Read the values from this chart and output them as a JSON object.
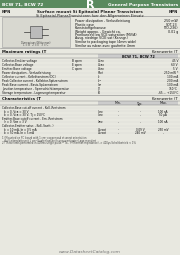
{
  "header_bg": "#5a8a5e",
  "header_text_left": "BCW 71, BCW 72",
  "header_text_center": "R",
  "header_text_right": "General Purpose Transistors",
  "header_text_color": "#ffffff",
  "subheader_left": "NPN",
  "subheader_right": "NPN",
  "body_bg": "#e8e8e0",
  "title1": "Surface mount Si Epitaxial Planar Transistors",
  "title2": "Si Epitaxial-Planar-Transistoren fuer den Allgemeinen Einsatz",
  "feat_lines": [
    [
      "Power dissipation - Verlustleistung",
      "250 mW"
    ],
    [
      "Plastic case",
      "SOT-23"
    ],
    [
      "Kunststoffgehaeuse",
      "(TO-236)"
    ],
    [
      "Weight approx. - Gewicht ca.",
      "0.01 g"
    ],
    [
      "Pronounced low VCE saturation (MV/A)",
      ""
    ],
    [
      "Ausg. niedrige VCEI sat (Kenngr.)",
      ""
    ],
    [
      "Similar to packaging tape (4mm wide)",
      ""
    ],
    [
      "Similar au ruban avec gaufrette 4mm",
      ""
    ]
  ],
  "max_ratings_title": "Maximum ratings (T",
  "max_ratings_title2": "A = 25°C)",
  "max_ratings_right": "Kennwerte (T",
  "max_ratings_right2": "A = 25°C)",
  "col_header": "BCW 71, BCW 72",
  "max_ratings": [
    [
      "Collector-Emitter voltage",
      "B open",
      "Vᴄᴇᴏ",
      "45 V"
    ],
    [
      "Collector-Base voltage",
      "E open",
      "Vᴄʙᴏ",
      "60 V"
    ],
    [
      "Emitter-Base voltage",
      "C open",
      "Vᴇʙᴏ",
      "5 V"
    ],
    [
      "Power dissipation - Verlustleistung",
      "",
      "Ptot",
      "250 mW *"
    ],
    [
      "Collector current - Kollektorstrom (DC)",
      "",
      "Iᴄ",
      "100 mA"
    ],
    [
      "Peak Collector current - Kollektor-Spitzenstrom",
      "",
      "Iᴄᴹ",
      "200 mA"
    ],
    [
      "Peak Base current - Basis-Spitzenstrom",
      "",
      "Iʙᴹ",
      "100 mA"
    ],
    [
      "Junction temperature - Sperrschichttemperatur",
      "",
      "Tj",
      "150°C"
    ],
    [
      "Storage temperature - Lagerungstemperatur",
      "",
      "Ts",
      "-65 ... +150°C"
    ]
  ],
  "char_title": "Characteristics (T",
  "char_title2": "A = 25°C)",
  "char_right": "Kennwerte (T",
  "char_right2": "A = 25°C)",
  "char_col_headers": [
    "Min.",
    "Typ.",
    "Max."
  ],
  "char_data": [
    [
      "Collector-Base cut-off current - Koll.-Reststrom",
      "",
      "",
      "",
      ""
    ],
    [
      "  Iᴄ = 0, Vᴄʙ = 30 V",
      "Iᴄʙᴏ",
      "-",
      "-",
      "100 nA"
    ],
    [
      "  Iᴄ = 0, Vᴄʙ = 30 V, Tj = 150°C",
      "Iᴄʙᴏ",
      "-",
      "-",
      "50 µA"
    ],
    [
      "Emitter-Base cutoff current - Em.-Reststrom",
      "",
      "",
      "",
      ""
    ],
    [
      "  Iᴇ = 0, Vᴇʙ = 3 V",
      "Iᴇʙᴏ",
      "-",
      "-",
      "100 nA"
    ],
    [
      "Collector-Emitter satur. - Koll.-Saett. )",
      "",
      "",
      "",
      ""
    ],
    [
      "  Iᴄ = 10 mA, Iʙ = 0.5 mA",
      "Vᴄᴇsat",
      "-",
      "0.09 V",
      "250 mV"
    ],
    [
      "  Iᴄ = 50 mA, Iʙ = 5 mA",
      "Vᴄᴇsat",
      "-",
      "240 mV",
      "-"
    ]
  ],
  "footnote1": "1) Mounted on PC board with 1 cm² copper pad at worst orientation",
  "footnote2": "   Auf Leiterplatte mit 1 cm² Kupferflaeche in unguenstigster Lage montiert",
  "footnote3": "2) These tests performed in 400ms single pulse. * Ta - f (Thermal impedance) -> 400µs Schaltbetrieb < 1%",
  "watermark": "www.DatasheetCatalog.com"
}
